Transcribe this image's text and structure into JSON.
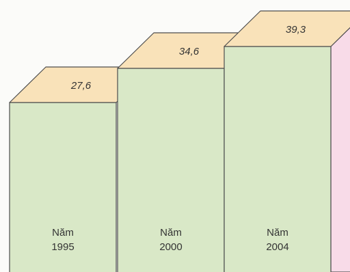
{
  "chart_data": {
    "type": "bar",
    "style": "3d-column",
    "title": "",
    "xlabel": "",
    "ylabel": "",
    "categories": [
      "Năm\n1995",
      "Năm\n2000",
      "Năm\n2004"
    ],
    "values": [
      27.6,
      34.6,
      39.3
    ],
    "value_labels": [
      "27,6",
      "34,6",
      "39,3"
    ],
    "grid": false,
    "legend": "none"
  },
  "colors": {
    "front": "#d9e8c7",
    "top": "#f9e2b9",
    "side": "#f8dbe8",
    "edge": "#4d4d4d",
    "text": "#333333",
    "background": "#fbfbf9"
  }
}
